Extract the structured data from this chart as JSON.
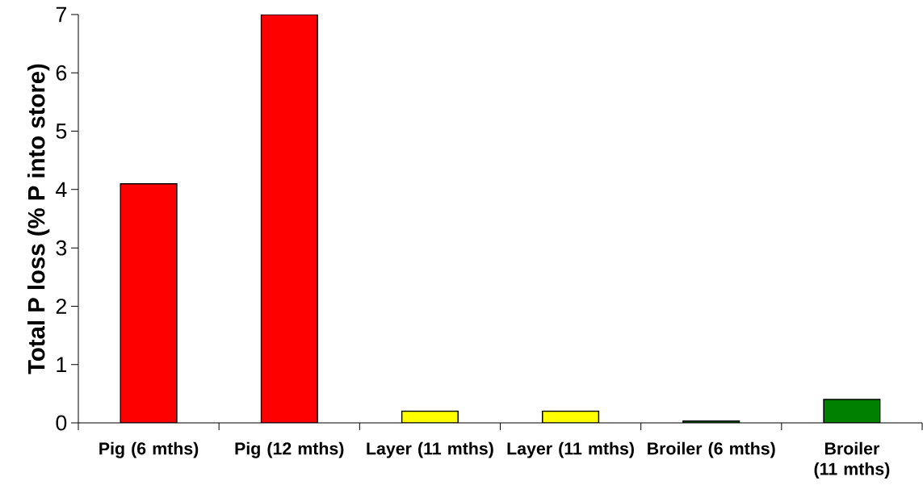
{
  "chart_data": {
    "type": "bar",
    "ylabel": "Total P loss (% P into store)",
    "categories": [
      "Pig (6 mths)",
      "Pig (12 mths)",
      "Layer (11 mths)",
      "Layer (11 mths)",
      "Broiler (6 mths)",
      "Broiler (11 mths)"
    ],
    "values": [
      4.1,
      7.0,
      0.2,
      0.2,
      0.03,
      0.4
    ],
    "colors": [
      "#ff0000",
      "#ff0000",
      "#ffff00",
      "#ffff00",
      "#008000",
      "#008000"
    ],
    "ylim": [
      0,
      7
    ],
    "yticks": [
      0,
      1,
      2,
      3,
      4,
      5,
      6,
      7
    ]
  }
}
